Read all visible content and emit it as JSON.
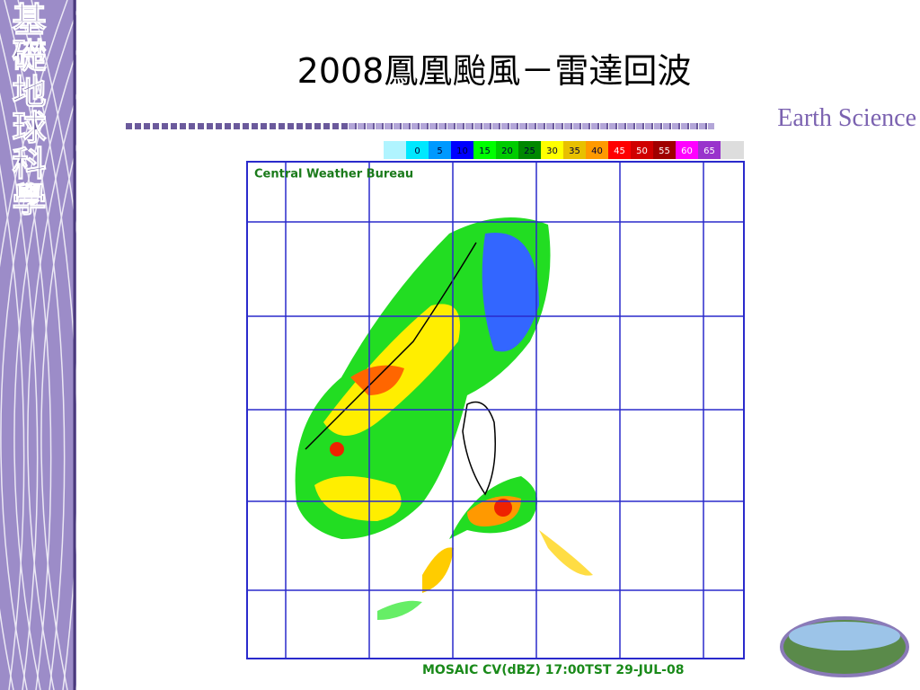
{
  "sidebar": {
    "title": "基礎地球科學"
  },
  "header": {
    "title": "2008鳳凰颱風－雷達回波",
    "brand": "Earth Science"
  },
  "radar": {
    "source": "Central Weather Bureau",
    "caption": "MOSAIC  CV(dBZ) 17:00TST 29-JUL-08",
    "legend": {
      "levels": [
        0,
        5,
        10,
        15,
        20,
        25,
        30,
        35,
        40,
        45,
        50,
        55,
        60,
        65
      ],
      "colors": [
        "#00e8ff",
        "#0099ff",
        "#0000ff",
        "#00ff00",
        "#00cc00",
        "#008800",
        "#ffff00",
        "#e8c000",
        "#ff9900",
        "#ff0000",
        "#d00000",
        "#a00000",
        "#ff00ff",
        "#9933cc"
      ]
    }
  }
}
